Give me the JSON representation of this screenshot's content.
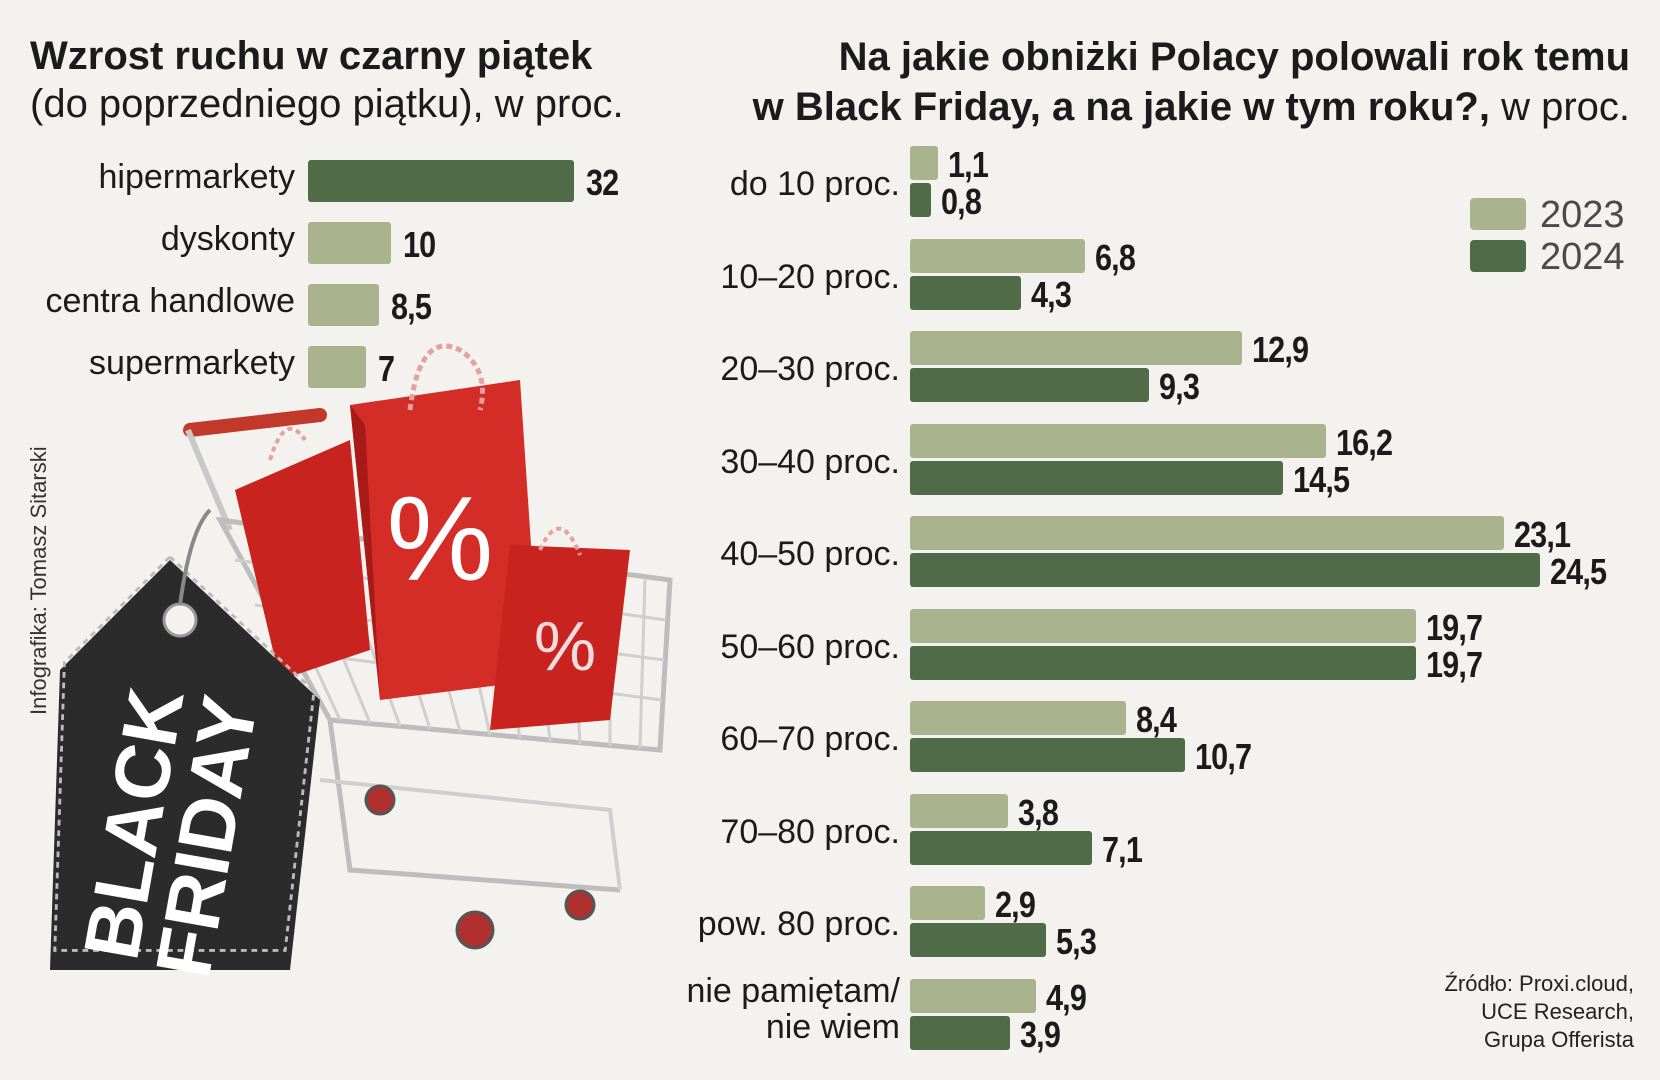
{
  "left_chart": {
    "title_bold": "Wzrost ruchu w czarny piątek",
    "title_light": "(do poprzedniego piątku), w proc."
  },
  "right_chart": {
    "title_line1": "Na jakie obniżki Polacy polowali rok temu",
    "title_line2_bold": "w Black Friday, a na jakie w tym roku?,",
    "title_line2_light": " w proc."
  },
  "credit": "Infografika: Tomasz Sitarski",
  "source": {
    "line1": "Źródło: Proxi.cloud,",
    "line2": "UCE Research,",
    "line3": "Grupa Offerista"
  },
  "illustration": {
    "tag_line1": "BLACK",
    "tag_line2": "FRIDAY",
    "bag_symbol": "%"
  },
  "colors": {
    "series_2023": "#a9b48f",
    "series_2024": "#4f6b48",
    "hipermarkety": "#4f6b48",
    "other": "#a9b48f"
  },
  "chart_data": [
    {
      "type": "bar",
      "title": "Wzrost ruchu w czarny piątek (do poprzedniego piątku), w proc.",
      "categories": [
        "hipermarkety",
        "dyskonty",
        "centra handlowe",
        "supermarkety"
      ],
      "values": [
        32,
        10,
        8.5,
        7
      ],
      "value_labels": [
        "32",
        "10",
        "8,5",
        "7"
      ],
      "orientation": "horizontal"
    },
    {
      "type": "bar",
      "title": "Na jakie obniżki Polacy polowali rok temu w Black Friday, a na jakie w tym roku?, w proc.",
      "orientation": "horizontal",
      "legend": "top-right",
      "categories": [
        "do 10 proc.",
        "10–20 proc.",
        "20–30 proc.",
        "30–40 proc.",
        "40–50 proc.",
        "50–60 proc.",
        "60–70 proc.",
        "70–80 proc.",
        "pow. 80 proc.",
        "nie pamiętam/ nie wiem"
      ],
      "category_lines": [
        [
          "do 10 proc."
        ],
        [
          "10–20 proc."
        ],
        [
          "20–30 proc."
        ],
        [
          "30–40 proc."
        ],
        [
          "40–50 proc."
        ],
        [
          "50–60 proc."
        ],
        [
          "60–70 proc."
        ],
        [
          "70–80 proc."
        ],
        [
          "pow. 80 proc."
        ],
        [
          "nie pamiętam/",
          "nie wiem"
        ]
      ],
      "series": [
        {
          "name": "2023",
          "values": [
            1.1,
            6.8,
            12.9,
            16.2,
            23.1,
            19.7,
            8.4,
            3.8,
            2.9,
            4.9
          ],
          "labels": [
            "1,1",
            "6,8",
            "12,9",
            "16,2",
            "23,1",
            "19,7",
            "8,4",
            "3,8",
            "2,9",
            "4,9"
          ]
        },
        {
          "name": "2024",
          "values": [
            0.8,
            4.3,
            9.3,
            14.5,
            24.5,
            19.7,
            10.7,
            7.1,
            5.3,
            3.9
          ],
          "labels": [
            "0,8",
            "4,3",
            "9,3",
            "14,5",
            "24,5",
            "19,7",
            "10,7",
            "7,1",
            "5,3",
            "3,9"
          ]
        }
      ]
    }
  ]
}
